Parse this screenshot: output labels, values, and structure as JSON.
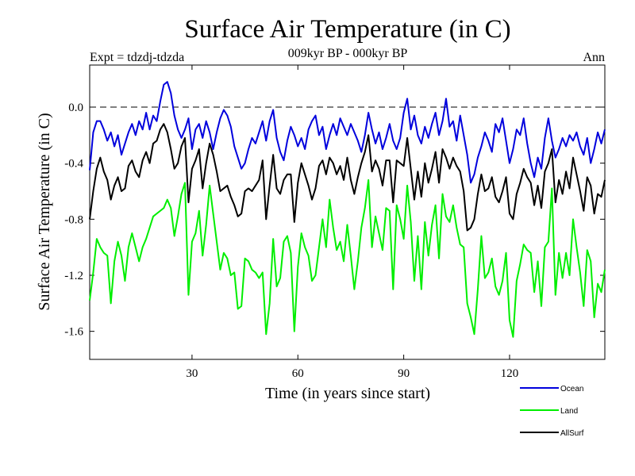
{
  "chart_data": {
    "type": "line",
    "title": "Surface Air Temperature (in C)",
    "subtitle": "009kyr BP - 000kyr BP",
    "left_note": "Expt = tdzdj-tdzda",
    "right_note": "Ann",
    "xlabel": "Time (in years since start)",
    "ylabel": "Surface Air Temperature (in C)",
    "xlim": [
      1,
      147
    ],
    "ylim": [
      -1.8,
      0.3
    ],
    "xticks": [
      30,
      60,
      90,
      120
    ],
    "yticks": [
      0.0,
      -0.4,
      -0.8,
      -1.2,
      -1.6
    ],
    "ytick_labels": [
      "0.0",
      "-0.4",
      "-0.8",
      "-1.2",
      "-1.6"
    ],
    "zero_line": 0.0,
    "series": [
      {
        "name": "Ocean",
        "color": "#0000dd",
        "values": [
          -0.45,
          -0.18,
          -0.1,
          -0.1,
          -0.16,
          -0.24,
          -0.18,
          -0.28,
          -0.2,
          -0.34,
          -0.26,
          -0.18,
          -0.12,
          -0.2,
          -0.1,
          -0.16,
          -0.04,
          -0.16,
          -0.06,
          -0.1,
          0.04,
          0.16,
          0.18,
          0.1,
          -0.06,
          -0.16,
          -0.22,
          -0.16,
          -0.08,
          -0.3,
          -0.16,
          -0.12,
          -0.22,
          -0.1,
          -0.18,
          -0.3,
          -0.18,
          -0.08,
          -0.02,
          -0.06,
          -0.14,
          -0.28,
          -0.36,
          -0.44,
          -0.4,
          -0.3,
          -0.22,
          -0.26,
          -0.18,
          -0.1,
          -0.24,
          -0.1,
          -0.02,
          -0.22,
          -0.32,
          -0.38,
          -0.24,
          -0.14,
          -0.2,
          -0.28,
          -0.22,
          -0.3,
          -0.16,
          -0.1,
          -0.06,
          -0.2,
          -0.14,
          -0.3,
          -0.2,
          -0.12,
          -0.2,
          -0.08,
          -0.14,
          -0.2,
          -0.12,
          -0.18,
          -0.24,
          -0.32,
          -0.2,
          -0.04,
          -0.16,
          -0.26,
          -0.18,
          -0.3,
          -0.22,
          -0.12,
          -0.24,
          -0.3,
          -0.22,
          -0.04,
          0.06,
          -0.16,
          -0.06,
          -0.2,
          -0.26,
          -0.14,
          -0.22,
          -0.12,
          -0.04,
          -0.2,
          -0.1,
          0.06,
          -0.14,
          -0.1,
          -0.24,
          -0.06,
          -0.2,
          -0.34,
          -0.54,
          -0.48,
          -0.36,
          -0.28,
          -0.18,
          -0.24,
          -0.32,
          -0.12,
          -0.18,
          -0.08,
          -0.24,
          -0.4,
          -0.3,
          -0.16,
          -0.2,
          -0.08,
          -0.26,
          -0.4,
          -0.5,
          -0.36,
          -0.44,
          -0.22,
          -0.08,
          -0.24,
          -0.36,
          -0.3,
          -0.22,
          -0.28,
          -0.2,
          -0.24,
          -0.18,
          -0.28,
          -0.34,
          -0.22,
          -0.4,
          -0.3,
          -0.18,
          -0.26,
          -0.16
        ]
      },
      {
        "name": "Land",
        "color": "#00ee00",
        "values": [
          -1.38,
          -1.18,
          -0.94,
          -1.0,
          -1.04,
          -1.06,
          -1.4,
          -1.1,
          -0.96,
          -1.06,
          -1.24,
          -1.0,
          -0.9,
          -1.0,
          -1.1,
          -1.0,
          -0.94,
          -0.86,
          -0.78,
          -0.76,
          -0.74,
          -0.72,
          -0.66,
          -0.72,
          -0.92,
          -0.78,
          -0.62,
          -0.54,
          -1.34,
          -0.96,
          -0.9,
          -0.74,
          -1.06,
          -0.84,
          -0.56,
          -0.76,
          -0.96,
          -1.16,
          -1.04,
          -1.08,
          -1.2,
          -1.18,
          -1.44,
          -1.42,
          -1.08,
          -1.1,
          -1.16,
          -1.18,
          -1.22,
          -1.18,
          -1.62,
          -1.4,
          -0.94,
          -1.28,
          -1.22,
          -0.96,
          -0.92,
          -1.04,
          -1.6,
          -1.14,
          -0.9,
          -1.0,
          -1.06,
          -1.24,
          -1.2,
          -1.0,
          -0.8,
          -1.0,
          -0.66,
          -0.86,
          -1.02,
          -0.96,
          -1.1,
          -0.84,
          -1.06,
          -1.3,
          -1.1,
          -0.86,
          -0.72,
          -0.52,
          -1.0,
          -0.78,
          -0.9,
          -1.02,
          -0.72,
          -0.74,
          -1.3,
          -0.7,
          -0.8,
          -0.94,
          -0.56,
          -0.82,
          -1.24,
          -0.92,
          -1.3,
          -0.82,
          -1.06,
          -0.84,
          -0.7,
          -1.08,
          -0.62,
          -0.78,
          -0.82,
          -0.7,
          -0.86,
          -0.98,
          -1.0,
          -1.4,
          -1.5,
          -1.62,
          -1.3,
          -0.92,
          -1.22,
          -1.18,
          -1.08,
          -1.28,
          -1.34,
          -1.24,
          -1.04,
          -1.52,
          -1.64,
          -1.24,
          -1.12,
          -0.98,
          -1.02,
          -1.04,
          -1.32,
          -1.1,
          -1.42,
          -1.0,
          -0.96,
          -0.58,
          -1.34,
          -1.04,
          -1.22,
          -1.04,
          -1.2,
          -0.8,
          -1.0,
          -1.18,
          -1.42,
          -1.02,
          -1.1,
          -1.5,
          -1.26,
          -1.32,
          -1.16
        ]
      },
      {
        "name": "AllSurf",
        "color": "#000000",
        "values": [
          -0.8,
          -0.6,
          -0.44,
          -0.36,
          -0.46,
          -0.52,
          -0.66,
          -0.56,
          -0.5,
          -0.6,
          -0.58,
          -0.42,
          -0.38,
          -0.46,
          -0.5,
          -0.38,
          -0.32,
          -0.4,
          -0.26,
          -0.24,
          -0.16,
          -0.12,
          -0.18,
          -0.3,
          -0.44,
          -0.4,
          -0.28,
          -0.22,
          -0.68,
          -0.44,
          -0.38,
          -0.3,
          -0.58,
          -0.4,
          -0.26,
          -0.34,
          -0.46,
          -0.6,
          -0.58,
          -0.56,
          -0.64,
          -0.7,
          -0.78,
          -0.76,
          -0.6,
          -0.58,
          -0.6,
          -0.56,
          -0.52,
          -0.38,
          -0.8,
          -0.56,
          -0.34,
          -0.58,
          -0.62,
          -0.52,
          -0.48,
          -0.48,
          -0.82,
          -0.54,
          -0.4,
          -0.48,
          -0.56,
          -0.66,
          -0.58,
          -0.42,
          -0.38,
          -0.48,
          -0.36,
          -0.4,
          -0.48,
          -0.42,
          -0.52,
          -0.36,
          -0.52,
          -0.62,
          -0.5,
          -0.4,
          -0.32,
          -0.2,
          -0.46,
          -0.38,
          -0.44,
          -0.56,
          -0.38,
          -0.38,
          -0.68,
          -0.38,
          -0.4,
          -0.42,
          -0.22,
          -0.44,
          -0.66,
          -0.46,
          -0.64,
          -0.4,
          -0.54,
          -0.44,
          -0.32,
          -0.54,
          -0.3,
          -0.36,
          -0.44,
          -0.36,
          -0.42,
          -0.46,
          -0.6,
          -0.88,
          -0.86,
          -0.8,
          -0.62,
          -0.48,
          -0.6,
          -0.58,
          -0.5,
          -0.64,
          -0.68,
          -0.6,
          -0.5,
          -0.76,
          -0.8,
          -0.62,
          -0.54,
          -0.44,
          -0.5,
          -0.54,
          -0.7,
          -0.56,
          -0.72,
          -0.46,
          -0.4,
          -0.3,
          -0.68,
          -0.52,
          -0.62,
          -0.46,
          -0.58,
          -0.36,
          -0.48,
          -0.6,
          -0.74,
          -0.5,
          -0.56,
          -0.76,
          -0.62,
          -0.64,
          -0.52
        ]
      }
    ]
  }
}
